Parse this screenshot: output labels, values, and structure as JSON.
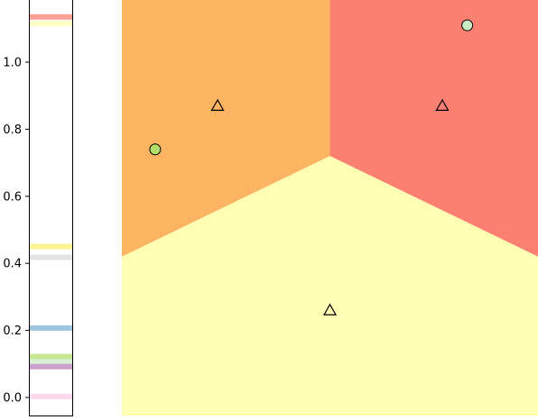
{
  "chart_data": [
    {
      "type": "bar",
      "description_role": "strip",
      "ylim": [
        -0.05,
        1.17
      ],
      "yticks": [
        {
          "value": 0.0,
          "label": "0.0"
        },
        {
          "value": 0.2,
          "label": "0.2"
        },
        {
          "value": 0.4,
          "label": "0.4"
        },
        {
          "value": 0.6,
          "label": "0.6"
        },
        {
          "value": 0.8,
          "label": "0.8"
        },
        {
          "value": 1.0,
          "label": "1.0"
        }
      ],
      "bands": [
        {
          "value": 1.135,
          "color": "#fb8072"
        },
        {
          "value": 1.115,
          "color": "#ffffb3"
        },
        {
          "value": 0.45,
          "color": "#ffed6f"
        },
        {
          "value": 0.418,
          "color": "#d9d9d9"
        },
        {
          "value": 0.207,
          "color": "#80b1d3"
        },
        {
          "value": 0.122,
          "color": "#b3de69"
        },
        {
          "value": 0.107,
          "color": "#ccebc5"
        },
        {
          "value": 0.092,
          "color": "#bc80bd"
        },
        {
          "value": 0.003,
          "color": "#fccde5"
        }
      ]
    },
    {
      "type": "scatter",
      "xlim": [
        0,
        1
      ],
      "ylim": [
        -0.05,
        1.17
      ],
      "region_colors": {
        "upper_left": "#fdb462",
        "upper_right": "#fb8072",
        "lower": "#ffffb3"
      },
      "region_boundary_junction": [
        0.5,
        0.72
      ],
      "region_boundary_left_edge_y": 0.42,
      "region_boundary_right_edge_y": 0.42,
      "centroids": [
        {
          "x": 0.23,
          "y": 0.87,
          "marker": "triangle"
        },
        {
          "x": 0.77,
          "y": 0.87,
          "marker": "triangle"
        },
        {
          "x": 0.5,
          "y": 0.26,
          "marker": "triangle"
        }
      ],
      "points": [
        {
          "x": 0.08,
          "y": 0.74,
          "color": "#b3de69"
        },
        {
          "x": 0.83,
          "y": 1.11,
          "color": "#ccebc5"
        }
      ]
    }
  ]
}
